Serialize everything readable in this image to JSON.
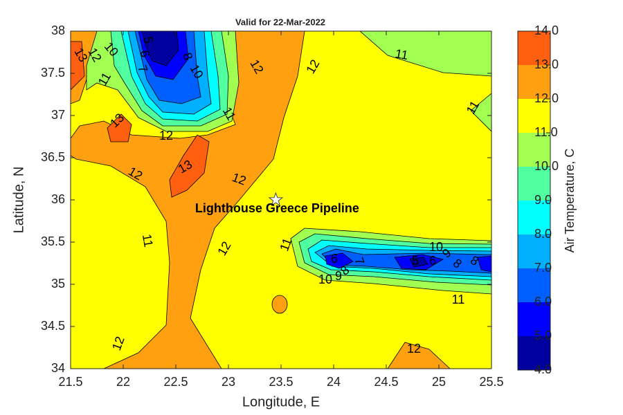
{
  "chart_data": {
    "type": "contourf",
    "title": "Valid for 22-Mar-2022",
    "xlabel": "Longitude, E",
    "ylabel": "Latitude, N",
    "xlim": [
      21.5,
      25.5
    ],
    "xticks": [
      21.5,
      22,
      22.5,
      23,
      23.5,
      24,
      24.5,
      25,
      25.5
    ],
    "ylim": [
      34,
      38
    ],
    "yticks": [
      34,
      34.5,
      35,
      35.5,
      36,
      36.5,
      37,
      37.5,
      38
    ],
    "colorbar": {
      "label": "Air Temperature, C",
      "lim": [
        4,
        14
      ],
      "ticks": [
        {
          "value": 4,
          "label": "4.0"
        },
        {
          "value": 5,
          "label": "5.0"
        },
        {
          "value": 6,
          "label": "6.0"
        },
        {
          "value": 7,
          "label": "7.0"
        },
        {
          "value": 8,
          "label": "8.0"
        },
        {
          "value": 9,
          "label": "9.0"
        },
        {
          "value": 10,
          "label": "10.0"
        },
        {
          "value": 11,
          "label": "11.0"
        },
        {
          "value": 12,
          "label": "12.0"
        },
        {
          "value": 13,
          "label": "13.0"
        },
        {
          "value": 14,
          "label": "14.0"
        }
      ],
      "colors": [
        "#00009f",
        "#0000ff",
        "#0060ff",
        "#00b0ff",
        "#00ffff",
        "#50ffa0",
        "#a0ff50",
        "#ffff00",
        "#ffa010",
        "#ff6010"
      ]
    },
    "annotation": {
      "text": "Lighthouse Greece Pipeline",
      "x": 23.45,
      "y": 36
    },
    "contour_labels": [
      13,
      12,
      10,
      5,
      6,
      7,
      8,
      10,
      11,
      12,
      12,
      11,
      11,
      13,
      12,
      11,
      13,
      12,
      12,
      11,
      12,
      11,
      6,
      7,
      10,
      9,
      8,
      5,
      6,
      10,
      9,
      8,
      8,
      11,
      12,
      12
    ]
  }
}
